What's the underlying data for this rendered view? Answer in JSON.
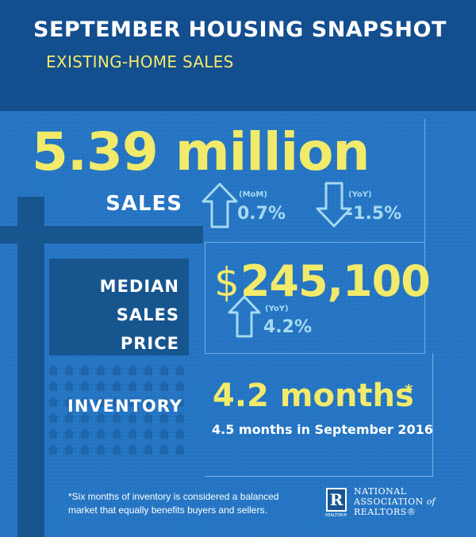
{
  "header": {
    "title": "SEPTEMBER HOUSING SNAPSHOT",
    "subtitle": "EXISTING-HOME SALES"
  },
  "sales": {
    "value": "5.39 million",
    "label": "SALES",
    "mom_caption": "(MoM)",
    "mom_value": "0.7%",
    "mom_direction": "up",
    "yoy_caption": "(YoY)",
    "yoy_value": "-1.5%",
    "yoy_direction": "down"
  },
  "median_price": {
    "label_line1": "MEDIAN",
    "label_line2": "SALES PRICE",
    "currency": "$",
    "value": "245,100",
    "yoy_caption": "(YoY)",
    "yoy_value": "4.2%",
    "yoy_direction": "up"
  },
  "inventory": {
    "label": "INVENTORY",
    "value": "4.2 months",
    "asterisk": "*",
    "comparison": "4.5 months in September 2016"
  },
  "footnote": "*Six months of inventory is considered a balanced market that equally benefits buyers and sellers.",
  "logo": {
    "mark": "R",
    "tag": "REALTOR®",
    "line1": "NATIONAL",
    "line2": "ASSOCIATION",
    "line2_suffix": "of",
    "line3": "REALTORS®"
  },
  "colors": {
    "header_bg": "#134e8f",
    "main_bg": "#2474c3",
    "accent_yellow": "#f2ea6b",
    "light_blue": "#a6d9f0"
  }
}
